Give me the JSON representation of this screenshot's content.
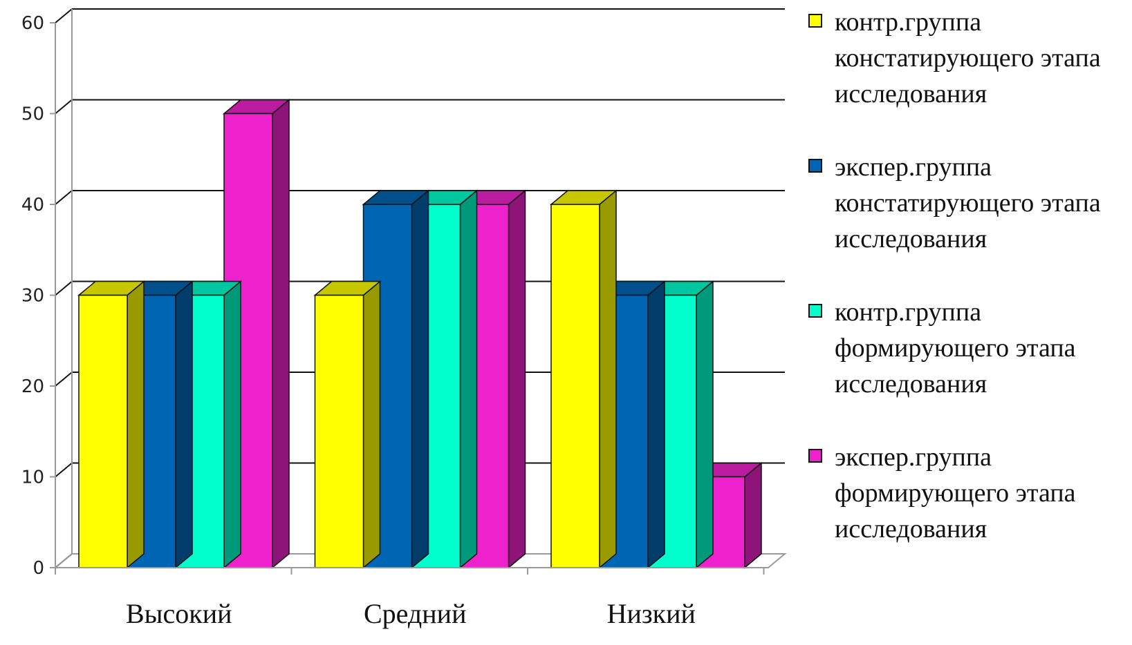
{
  "chart_data": {
    "type": "bar",
    "categories": [
      "Высокий",
      "Средний",
      "Низкий"
    ],
    "series": [
      {
        "name": "контр.группа констатирующего этапа исследования",
        "values": [
          30,
          30,
          40
        ],
        "color": "#FFFF00"
      },
      {
        "name": "экспер.группа констатирующего этапа исследования",
        "values": [
          30,
          40,
          30
        ],
        "color": "#0066B3"
      },
      {
        "name": "контр.группа формирующего этапа исследования",
        "values": [
          30,
          40,
          30
        ],
        "color": "#00FFCC"
      },
      {
        "name": "экспер.группа формирующего этапа исследования",
        "values": [
          50,
          40,
          10
        ],
        "color": "#EE22CC"
      }
    ],
    "ylim": [
      0,
      60
    ],
    "yticks": [
      "0",
      "10",
      "20",
      "30",
      "40",
      "50",
      "60"
    ],
    "grid": true,
    "legend_position": "right",
    "style": "3d-clustered-column"
  }
}
